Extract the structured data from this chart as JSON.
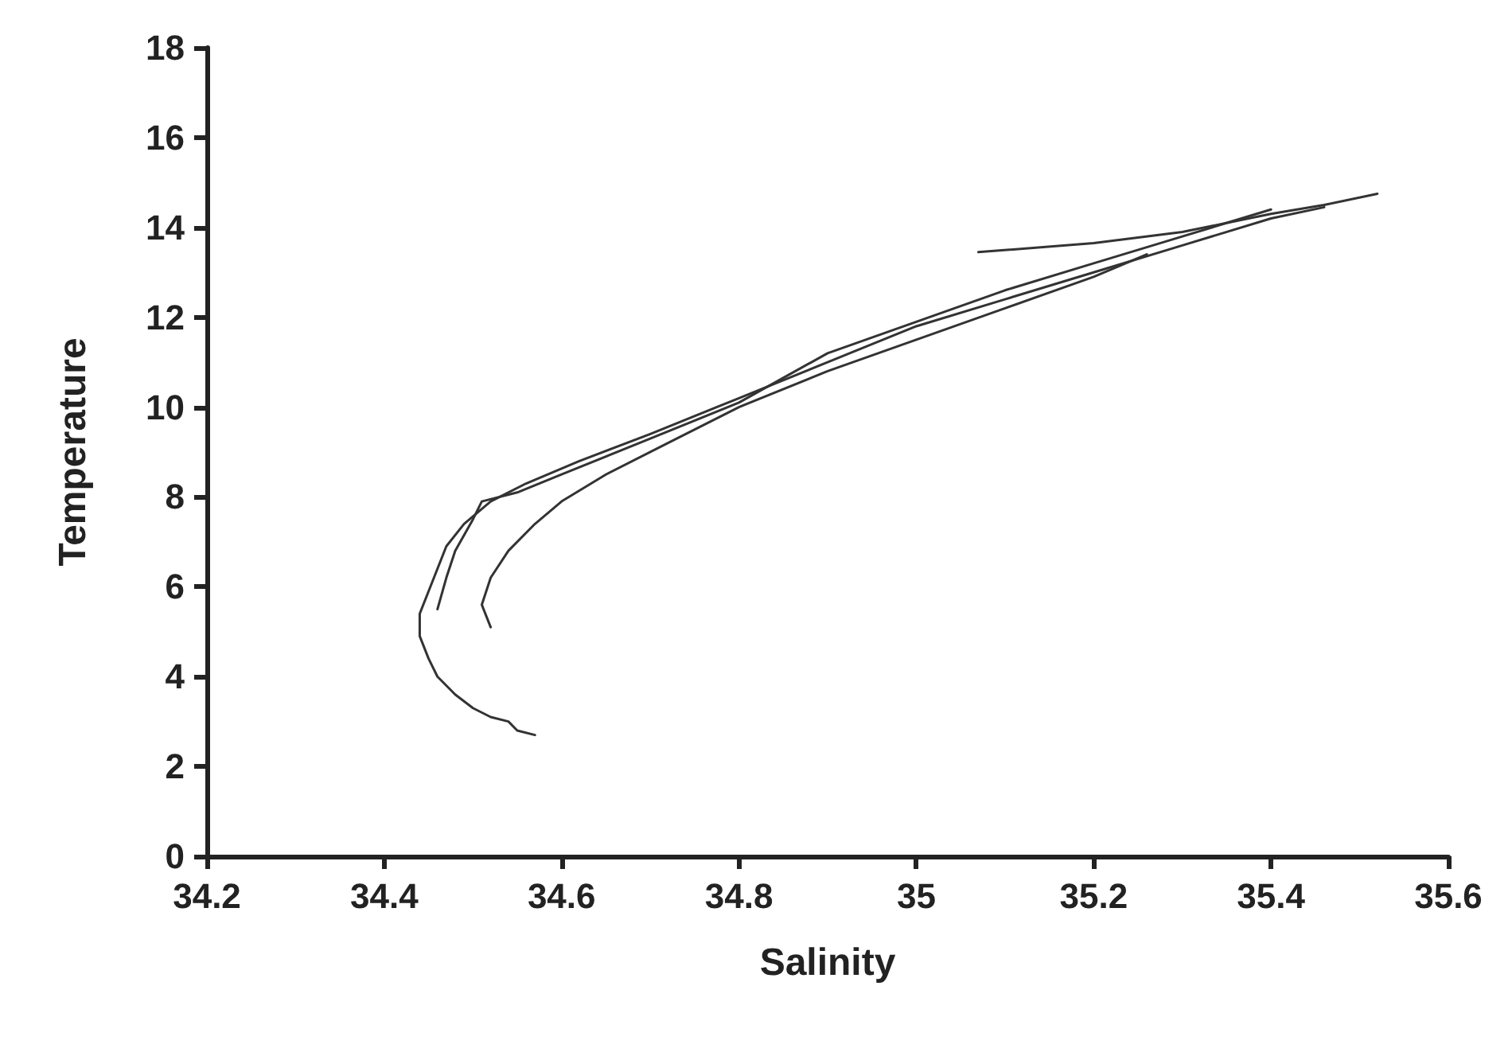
{
  "chart_data": {
    "type": "line",
    "xlabel": "Salinity",
    "ylabel": "Temperature",
    "xlim": [
      34.2,
      35.6
    ],
    "xticks": [
      34.2,
      34.4,
      34.6,
      34.8,
      35,
      35.2,
      35.4,
      35.6
    ],
    "ylim": [
      0,
      18
    ],
    "yticks": [
      0,
      2,
      4,
      6,
      8,
      10,
      12,
      14,
      16,
      18
    ],
    "grid": false,
    "marker": "none",
    "line_style": "solid",
    "series": [
      {
        "color": "#333333",
        "x": [
          34.57,
          34.55,
          34.54,
          34.52,
          34.5,
          34.48,
          34.46,
          34.45,
          34.44,
          34.44,
          34.45,
          34.46,
          34.47,
          34.49,
          34.52,
          34.56,
          34.62,
          34.7,
          34.8,
          34.9,
          35.0,
          35.1,
          35.2,
          35.3,
          35.4,
          35.46
        ],
        "values": [
          2.7,
          2.8,
          3.0,
          3.1,
          3.3,
          3.6,
          4.0,
          4.4,
          4.9,
          5.4,
          5.9,
          6.4,
          6.9,
          7.4,
          7.9,
          8.3,
          8.8,
          9.4,
          10.2,
          11.0,
          11.8,
          12.4,
          13.0,
          13.6,
          14.2,
          14.45
        ]
      },
      {
        "color": "#333333",
        "x": [
          34.52,
          34.51,
          34.52,
          34.54,
          34.57,
          34.6,
          34.65,
          34.72,
          34.8,
          34.9,
          35.0,
          35.1,
          35.2,
          35.26
        ],
        "values": [
          5.1,
          5.6,
          6.2,
          6.8,
          7.4,
          7.9,
          8.5,
          9.2,
          10.0,
          10.8,
          11.5,
          12.2,
          12.9,
          13.4
        ]
      },
      {
        "color": "#333333",
        "x": [
          34.46,
          34.47,
          34.48,
          34.5,
          34.51,
          34.55,
          34.6,
          34.7,
          34.8,
          34.9,
          35.0,
          35.1,
          35.2,
          35.3,
          35.4
        ],
        "values": [
          5.5,
          6.2,
          6.8,
          7.5,
          7.9,
          8.1,
          8.5,
          9.3,
          10.1,
          11.2,
          11.9,
          12.6,
          13.2,
          13.8,
          14.4
        ]
      },
      {
        "color": "#333333",
        "x": [
          35.07,
          35.2,
          35.3,
          35.4,
          35.46,
          35.52
        ],
        "values": [
          13.45,
          13.65,
          13.9,
          14.3,
          14.5,
          14.75
        ]
      }
    ]
  }
}
